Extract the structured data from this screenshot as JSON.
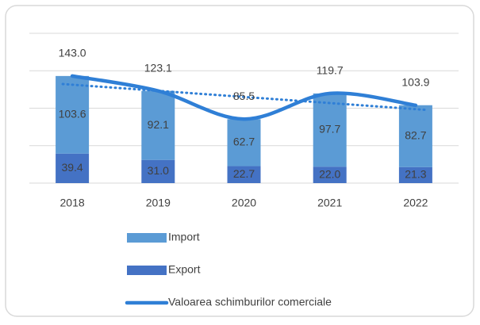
{
  "chart_data": {
    "type": "bar",
    "stacked": true,
    "categories": [
      "2018",
      "2019",
      "2020",
      "2021",
      "2022"
    ],
    "series": [
      {
        "name": "Import",
        "type": "bar",
        "color": "#5b9bd5",
        "values": [
          103.6,
          92.1,
          62.7,
          97.7,
          82.7
        ]
      },
      {
        "name": "Export",
        "type": "bar",
        "color": "#4472c4",
        "values": [
          39.4,
          31.0,
          22.7,
          22.0,
          21.3
        ],
        "value_labels": [
          "39.4",
          "31.0",
          "22.7",
          "22.0",
          "21.3"
        ]
      },
      {
        "name": "Valoarea schimburilor comerciale",
        "type": "line",
        "smooth": true,
        "trendline": true,
        "color": "#2f7fd6",
        "values": [
          143.0,
          123.1,
          85.5,
          119.7,
          103.9
        ],
        "value_labels": [
          "143.0",
          "123.1",
          "85.5",
          "119.7",
          "103.9"
        ]
      }
    ],
    "stack_order": [
      1,
      0
    ],
    "ylim": [
      0,
      200
    ],
    "yticks": [
      0,
      50,
      100,
      150,
      200
    ],
    "grid": true,
    "legend": "bottom"
  }
}
